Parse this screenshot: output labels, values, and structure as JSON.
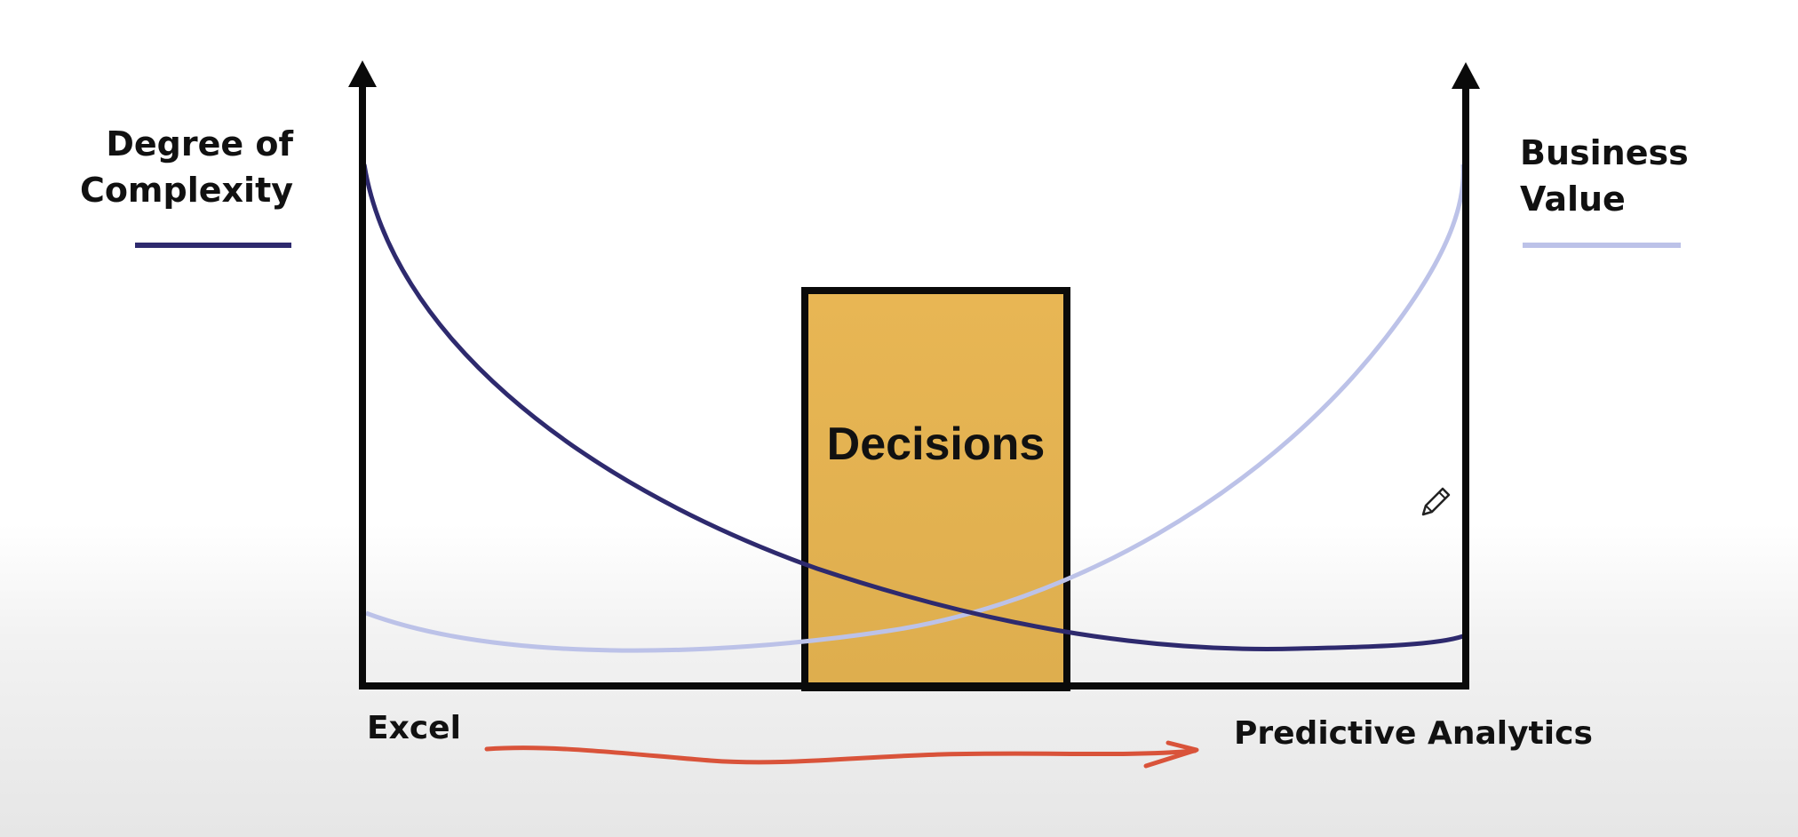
{
  "left_axis": {
    "label_line1": "Degree of",
    "label_line2": "Complexity",
    "legend_color": "#2e2a6e"
  },
  "right_axis": {
    "label_line1": "Business",
    "label_line2": "Value",
    "legend_color": "#bcc2e8"
  },
  "box": {
    "label": "Decisions",
    "fill_color": "#e6b452"
  },
  "x_axis": {
    "start_label": "Excel",
    "end_label": "Predictive Analytics",
    "arrow_color": "#d9533a"
  },
  "curves": [
    {
      "name": "Degree of Complexity",
      "shape": "decreasing"
    },
    {
      "name": "Business Value",
      "shape": "increasing"
    }
  ],
  "cursor": "pencil-icon"
}
